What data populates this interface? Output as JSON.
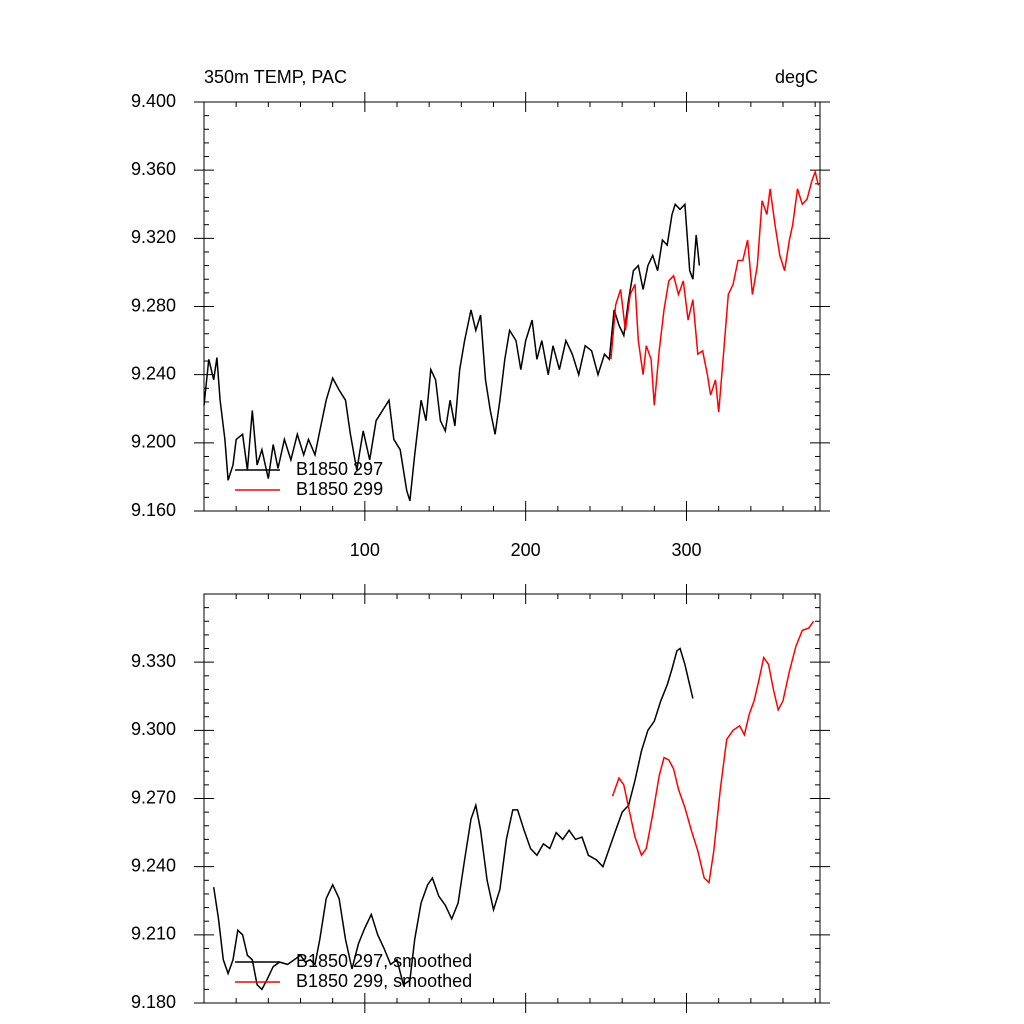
{
  "chart_data": [
    {
      "type": "line",
      "title": "350m TEMP, PAC",
      "units": "degC",
      "xlim": [
        0,
        383
      ],
      "xticks": [
        100,
        200,
        300
      ],
      "xtick_labels": true,
      "ylim": [
        9.16,
        9.4
      ],
      "yticks": [
        {
          "value": 9.16,
          "label": "9.160"
        },
        {
          "value": 9.2,
          "label": "9.200"
        },
        {
          "value": 9.24,
          "label": "9.240"
        },
        {
          "value": 9.28,
          "label": "9.280"
        },
        {
          "value": 9.32,
          "label": "9.320"
        },
        {
          "value": 9.36,
          "label": "9.360"
        },
        {
          "value": 9.4,
          "label": "9.400"
        }
      ],
      "legend": "lower left",
      "series": [
        {
          "name": "B1850 297",
          "color": "#000000",
          "x": [
            0,
            3,
            6,
            8,
            10,
            13,
            15,
            18,
            20,
            24,
            27,
            30,
            33,
            36,
            40,
            43,
            46,
            50,
            54,
            58,
            62,
            65,
            69,
            72,
            76,
            80,
            84,
            88,
            91,
            95,
            99,
            103,
            107,
            111,
            115,
            118,
            122,
            126,
            128,
            131,
            135,
            138,
            141,
            144,
            147,
            150,
            153,
            156,
            159,
            162,
            166,
            169,
            172,
            175,
            178,
            181,
            184,
            187,
            190,
            194,
            197,
            200,
            204,
            207,
            210,
            214,
            217,
            221,
            225,
            229,
            233,
            237,
            241,
            245,
            249,
            252,
            255,
            258,
            261,
            264,
            267,
            270,
            273,
            276,
            279,
            282,
            285,
            288,
            291,
            293,
            296,
            299,
            302,
            304,
            306,
            308
          ],
          "values": [
            9.222,
            9.249,
            9.237,
            9.25,
            9.225,
            9.202,
            9.178,
            9.187,
            9.202,
            9.205,
            9.184,
            9.219,
            9.187,
            9.196,
            9.179,
            9.199,
            9.185,
            9.202,
            9.19,
            9.205,
            9.193,
            9.202,
            9.193,
            9.207,
            9.225,
            9.238,
            9.231,
            9.225,
            9.205,
            9.184,
            9.207,
            9.19,
            9.213,
            9.219,
            9.225,
            9.202,
            9.196,
            9.172,
            9.166,
            9.193,
            9.225,
            9.213,
            9.243,
            9.237,
            9.213,
            9.207,
            9.225,
            9.21,
            9.243,
            9.26,
            9.278,
            9.266,
            9.275,
            9.237,
            9.219,
            9.205,
            9.225,
            9.249,
            9.266,
            9.26,
            9.243,
            9.26,
            9.272,
            9.249,
            9.26,
            9.24,
            9.257,
            9.243,
            9.26,
            9.252,
            9.24,
            9.257,
            9.254,
            9.24,
            9.252,
            9.249,
            9.278,
            9.269,
            9.263,
            9.284,
            9.301,
            9.304,
            9.29,
            9.304,
            9.31,
            9.301,
            9.319,
            9.316,
            9.334,
            9.34,
            9.337,
            9.34,
            9.301,
            9.296,
            9.322,
            9.304
          ]
        },
        {
          "name": "B1850 299",
          "color": "#ff0000",
          "x": [
            253,
            256,
            259,
            262,
            265,
            268,
            270,
            273,
            275,
            278,
            280,
            283,
            286,
            289,
            292,
            295,
            298,
            301,
            304,
            307,
            310,
            313,
            315,
            318,
            320,
            323,
            326,
            329,
            332,
            335,
            338,
            341,
            344,
            347,
            350,
            352,
            355,
            358,
            361,
            364,
            366,
            369,
            372,
            375,
            378,
            380,
            382
          ],
          "values": [
            9.249,
            9.281,
            9.29,
            9.266,
            9.287,
            9.293,
            9.26,
            9.24,
            9.257,
            9.249,
            9.222,
            9.254,
            9.278,
            9.295,
            9.298,
            9.287,
            9.295,
            9.272,
            9.284,
            9.252,
            9.254,
            9.24,
            9.228,
            9.237,
            9.218,
            9.252,
            9.287,
            9.293,
            9.307,
            9.307,
            9.319,
            9.287,
            9.304,
            9.342,
            9.334,
            9.349,
            9.328,
            9.31,
            9.301,
            9.319,
            9.328,
            9.349,
            9.34,
            9.343,
            9.354,
            9.359,
            9.351
          ]
        }
      ]
    },
    {
      "type": "line",
      "xlim": [
        0,
        383
      ],
      "xticks": [
        100,
        200,
        300
      ],
      "xtick_labels": false,
      "ylim": [
        9.18,
        9.36
      ],
      "yticks": [
        {
          "value": 9.18,
          "label": "9.180"
        },
        {
          "value": 9.21,
          "label": "9.210"
        },
        {
          "value": 9.24,
          "label": "9.240"
        },
        {
          "value": 9.27,
          "label": "9.270"
        },
        {
          "value": 9.3,
          "label": "9.300"
        },
        {
          "value": 9.33,
          "label": "9.330"
        }
      ],
      "legend": "lower left",
      "series": [
        {
          "name": "B1850 297, smoothed",
          "color": "#000000",
          "x": [
            6,
            9,
            12,
            15,
            18,
            21,
            24,
            27,
            30,
            33,
            36,
            39,
            43,
            47,
            52,
            56,
            60,
            63,
            66,
            69,
            72,
            76,
            80,
            84,
            88,
            92,
            96,
            100,
            104,
            108,
            112,
            116,
            120,
            124,
            128,
            131,
            135,
            139,
            142,
            146,
            150,
            154,
            158,
            162,
            166,
            169,
            172,
            176,
            180,
            184,
            188,
            192,
            195,
            199,
            203,
            207,
            211,
            215,
            219,
            223,
            227,
            231,
            235,
            239,
            244,
            248,
            252,
            256,
            260,
            264,
            268,
            272,
            276,
            280,
            284,
            288,
            291,
            294,
            296,
            299,
            302,
            304
          ],
          "values": [
            9.231,
            9.217,
            9.199,
            9.193,
            9.199,
            9.212,
            9.21,
            9.201,
            9.199,
            9.188,
            9.186,
            9.19,
            9.196,
            9.198,
            9.197,
            9.199,
            9.201,
            9.198,
            9.199,
            9.197,
            9.208,
            9.226,
            9.232,
            9.226,
            9.208,
            9.195,
            9.206,
            9.213,
            9.219,
            9.21,
            9.204,
            9.197,
            9.199,
            9.188,
            9.19,
            9.208,
            9.224,
            9.232,
            9.235,
            9.227,
            9.223,
            9.217,
            9.224,
            9.243,
            9.261,
            9.267,
            9.256,
            9.234,
            9.221,
            9.23,
            9.252,
            9.265,
            9.265,
            9.256,
            9.248,
            9.245,
            9.25,
            9.248,
            9.255,
            9.252,
            9.256,
            9.252,
            9.253,
            9.245,
            9.243,
            9.24,
            9.248,
            9.256,
            9.264,
            9.267,
            9.278,
            9.291,
            9.3,
            9.304,
            9.313,
            9.32,
            9.327,
            9.335,
            9.336,
            9.329,
            9.32,
            9.314
          ]
        },
        {
          "name": "B1850 299, smoothed",
          "color": "#ff0000",
          "x": [
            254,
            258,
            261,
            264,
            268,
            272,
            275,
            279,
            283,
            286,
            289,
            292,
            295,
            299,
            303,
            307,
            311,
            314,
            317,
            321,
            325,
            329,
            333,
            336,
            339,
            342,
            345,
            348,
            351,
            354,
            357,
            360,
            364,
            368,
            372,
            376,
            379
          ],
          "values": [
            9.271,
            9.279,
            9.276,
            9.266,
            9.253,
            9.245,
            9.248,
            9.263,
            9.28,
            9.288,
            9.287,
            9.283,
            9.274,
            9.266,
            9.256,
            9.247,
            9.235,
            9.233,
            9.247,
            9.274,
            9.296,
            9.3,
            9.302,
            9.298,
            9.307,
            9.313,
            9.322,
            9.332,
            9.329,
            9.318,
            9.309,
            9.313,
            9.326,
            9.337,
            9.344,
            9.345,
            9.348
          ]
        }
      ]
    }
  ]
}
